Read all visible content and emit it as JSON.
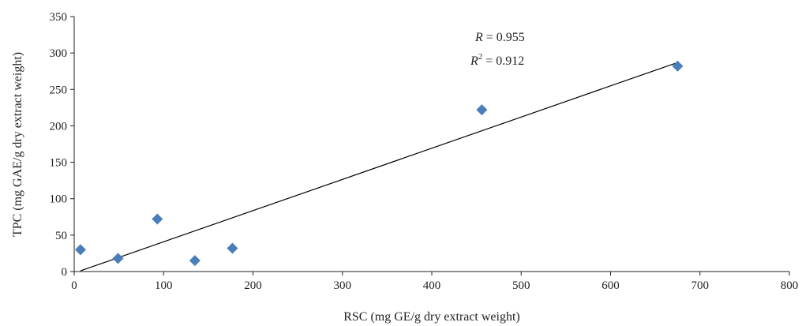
{
  "chart_data": {
    "type": "scatter",
    "title": "",
    "xlabel": "RSC (mg GE/g dry extract weight)",
    "ylabel": "TPC (mg GAE/g dry extract weight)",
    "xlim": [
      0,
      800
    ],
    "ylim": [
      0,
      350
    ],
    "xticks": [
      "0",
      "100",
      "200",
      "300",
      "400",
      "500",
      "600",
      "700",
      "800"
    ],
    "yticks": [
      "0",
      "50",
      "100",
      "150",
      "200",
      "250",
      "300",
      "350"
    ],
    "grid": false,
    "legend": "none",
    "marker": "diamond",
    "marker_color": "#4a7ebb",
    "points": [
      {
        "x": 7,
        "y": 30
      },
      {
        "x": 49,
        "y": 18
      },
      {
        "x": 93,
        "y": 72
      },
      {
        "x": 135,
        "y": 15
      },
      {
        "x": 177,
        "y": 32
      },
      {
        "x": 456,
        "y": 222
      },
      {
        "x": 675,
        "y": 282
      }
    ],
    "trendline": {
      "x": [
        7,
        675
      ],
      "y": [
        1,
        287
      ]
    },
    "annotation": {
      "r_symbol": "R",
      "r_value": " = 0.955",
      "r2_symbol": "R",
      "r2_exponent": "2",
      "r2_value": " = 0.912"
    }
  }
}
